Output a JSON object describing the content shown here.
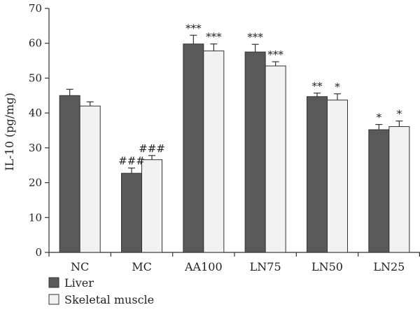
{
  "chart_data": {
    "type": "bar",
    "title": "",
    "xlabel": "",
    "ylabel": "IL-10 (pg/mg)",
    "ylim": [
      0,
      70
    ],
    "yticks": [
      0,
      10,
      20,
      30,
      40,
      50,
      60,
      70
    ],
    "grid": false,
    "legend_position": "bottom-left",
    "categories": [
      "NC",
      "MC",
      "AA100",
      "LN75",
      "LN50",
      "LN25"
    ],
    "series": [
      {
        "name": "Liver",
        "color": "#595959",
        "values": [
          45.0,
          22.7,
          59.8,
          57.5,
          44.7,
          35.2
        ],
        "errors": [
          1.8,
          1.5,
          2.5,
          2.2,
          1.0,
          1.5
        ],
        "annotations": [
          "",
          "###",
          "***",
          "***",
          "**",
          "*"
        ]
      },
      {
        "name": "Skeletal muscle",
        "color": "#f2f2f2",
        "values": [
          42.0,
          26.6,
          57.8,
          53.5,
          43.7,
          36.1
        ],
        "errors": [
          1.2,
          1.2,
          2.0,
          1.2,
          1.8,
          1.6
        ],
        "annotations": [
          "",
          "###",
          "***",
          "***",
          "*",
          "*"
        ]
      }
    ]
  }
}
